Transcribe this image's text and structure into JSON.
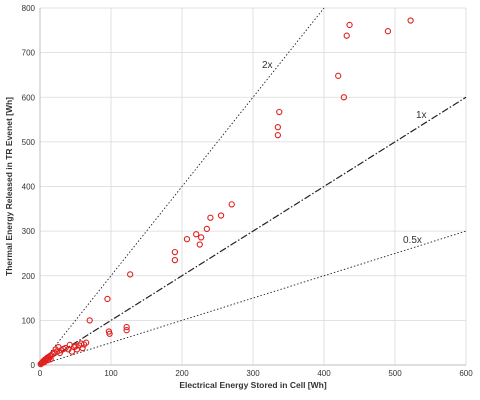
{
  "chart_data": {
    "type": "scatter",
    "title": "",
    "xlabel": "Electrical Energy Stored in Cell [Wh]",
    "ylabel": "Thermal Energy Released in TR Evenet [Wh]",
    "xlim": [
      0,
      600
    ],
    "ylim": [
      0,
      800
    ],
    "xticks": [
      0,
      100,
      200,
      300,
      400,
      500,
      600
    ],
    "yticks": [
      0,
      100,
      200,
      300,
      400,
      500,
      600,
      700,
      800
    ],
    "grid": true,
    "marker": "open-circle",
    "marker_color": "#e02020",
    "reference_lines": [
      {
        "label": "2x",
        "slope": 2,
        "style": "dotted"
      },
      {
        "label": "1x",
        "slope": 1,
        "style": "dash-dot"
      },
      {
        "label": "0.5x",
        "slope": 0.5,
        "style": "dotted"
      }
    ],
    "series": [
      {
        "points": [
          [
            1,
            2
          ],
          [
            2,
            4
          ],
          [
            3,
            5
          ],
          [
            4,
            7
          ],
          [
            5,
            9
          ],
          [
            6,
            6
          ],
          [
            7,
            12
          ],
          [
            8,
            10
          ],
          [
            9,
            14
          ],
          [
            10,
            16
          ],
          [
            11,
            11
          ],
          [
            12,
            18
          ],
          [
            13,
            15
          ],
          [
            14,
            20
          ],
          [
            15,
            13
          ],
          [
            16,
            22
          ],
          [
            18,
            25
          ],
          [
            20,
            28
          ],
          [
            22,
            35
          ],
          [
            24,
            30
          ],
          [
            26,
            40
          ],
          [
            28,
            27
          ],
          [
            30,
            33
          ],
          [
            33,
            36
          ],
          [
            36,
            38
          ],
          [
            40,
            35
          ],
          [
            42,
            45
          ],
          [
            45,
            30
          ],
          [
            48,
            40
          ],
          [
            50,
            42
          ],
          [
            52,
            35
          ],
          [
            55,
            44
          ],
          [
            58,
            48
          ],
          [
            60,
            38
          ],
          [
            62,
            46
          ],
          [
            65,
            50
          ],
          [
            70,
            100
          ],
          [
            95,
            148
          ],
          [
            97,
            75
          ],
          [
            98,
            70
          ],
          [
            122,
            85
          ],
          [
            122,
            78
          ],
          [
            127,
            203
          ],
          [
            190,
            235
          ],
          [
            190,
            253
          ],
          [
            207,
            282
          ],
          [
            220,
            293
          ],
          [
            225,
            270
          ],
          [
            227,
            286
          ],
          [
            235,
            305
          ],
          [
            240,
            330
          ],
          [
            255,
            335
          ],
          [
            270,
            360
          ],
          [
            335,
            533
          ],
          [
            335,
            515
          ],
          [
            337,
            567
          ],
          [
            420,
            648
          ],
          [
            428,
            600
          ],
          [
            432,
            738
          ],
          [
            436,
            762
          ],
          [
            490,
            748
          ],
          [
            522,
            772
          ]
        ]
      }
    ]
  }
}
